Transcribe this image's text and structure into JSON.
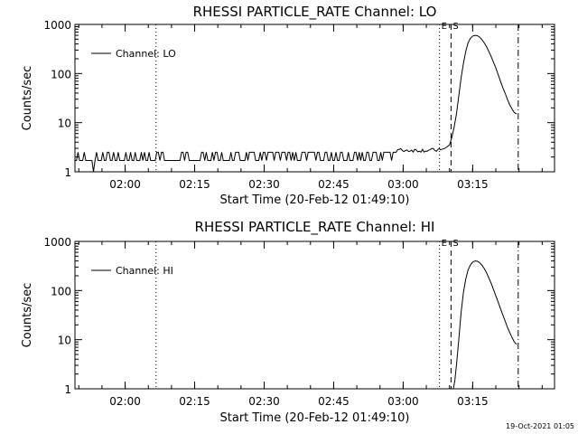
{
  "footer": {
    "timestamp": "19-Oct-2021 01:05"
  },
  "chart_data": [
    {
      "type": "line",
      "title": "RHESSI PARTICLE_RATE Channel: LO",
      "xlabel": "Start Time (20-Feb-12 01:49:10)",
      "ylabel": "Counts/sec",
      "y_scale": "log",
      "ylim": [
        1,
        1000
      ],
      "xlim": [
        "01:49:10",
        "03:32:40"
      ],
      "x_ticks": [
        "02:00",
        "02:15",
        "02:30",
        "02:45",
        "03:00",
        "03:15"
      ],
      "y_ticks": [
        "1",
        "10",
        "100",
        "1000"
      ],
      "legend": {
        "label": "Channel: LO",
        "position": "top-left"
      },
      "markers": [
        {
          "time": "02:06:40",
          "style": "dotted",
          "label": ""
        },
        {
          "time": "03:07:50",
          "style": "dotted",
          "label": "E"
        },
        {
          "time": "03:10:20",
          "style": "dashed",
          "label": "S"
        },
        {
          "time": "03:24:50",
          "style": "dashdot",
          "label": ""
        }
      ],
      "series": [
        {
          "name": "Channel: LO",
          "noise": {
            "from": "01:49:10",
            "to": "03:08:00",
            "levels": [
              1.7,
              2.5
            ],
            "dip": {
              "time": "01:53:10",
              "value": 1.0
            }
          },
          "x": [
            "03:08:00",
            "03:09:00",
            "03:10:00",
            "03:10:30",
            "03:11:00",
            "03:11:30",
            "03:12:00",
            "03:12:30",
            "03:13:00",
            "03:13:30",
            "03:14:00",
            "03:14:30",
            "03:15:00",
            "03:15:30",
            "03:16:00",
            "03:16:30",
            "03:17:00",
            "03:17:30",
            "03:18:00",
            "03:18:30",
            "03:19:00",
            "03:19:30",
            "03:20:00",
            "03:20:30",
            "03:21:00",
            "03:21:30",
            "03:22:00",
            "03:22:30",
            "03:23:00",
            "03:23:30",
            "03:24:00",
            "03:24:30"
          ],
          "y": [
            2.8,
            3,
            3.5,
            5,
            8,
            15,
            35,
            80,
            160,
            280,
            420,
            520,
            580,
            600,
            590,
            550,
            490,
            420,
            350,
            280,
            220,
            170,
            130,
            95,
            70,
            52,
            40,
            30,
            23,
            19,
            16,
            15
          ]
        }
      ]
    },
    {
      "type": "line",
      "title": "RHESSI PARTICLE_RATE Channel: HI",
      "xlabel": "Start Time (20-Feb-12 01:49:10)",
      "ylabel": "Counts/sec",
      "y_scale": "log",
      "ylim": [
        1,
        1000
      ],
      "xlim": [
        "01:49:10",
        "03:32:40"
      ],
      "x_ticks": [
        "02:00",
        "02:15",
        "02:30",
        "02:45",
        "03:00",
        "03:15"
      ],
      "y_ticks": [
        "1",
        "10",
        "100",
        "1000"
      ],
      "legend": {
        "label": "Channel: HI",
        "position": "top-left"
      },
      "markers": [
        {
          "time": "02:06:40",
          "style": "dotted",
          "label": ""
        },
        {
          "time": "03:07:50",
          "style": "dotted",
          "label": "E"
        },
        {
          "time": "03:10:20",
          "style": "dashed",
          "label": "S"
        },
        {
          "time": "03:24:50",
          "style": "dashdot",
          "label": ""
        }
      ],
      "series": [
        {
          "name": "Channel: HI",
          "x": [
            "03:10:50",
            "03:11:10",
            "03:11:30",
            "03:12:00",
            "03:12:30",
            "03:13:00",
            "03:13:30",
            "03:14:00",
            "03:14:30",
            "03:15:00",
            "03:15:30",
            "03:16:00",
            "03:16:30",
            "03:17:00",
            "03:17:30",
            "03:18:00",
            "03:18:30",
            "03:19:00",
            "03:19:30",
            "03:20:00",
            "03:20:30",
            "03:21:00",
            "03:21:30",
            "03:22:00",
            "03:22:30",
            "03:23:00",
            "03:23:30",
            "03:24:00",
            "03:24:30"
          ],
          "y": [
            1,
            1.5,
            3,
            10,
            35,
            90,
            170,
            260,
            330,
            380,
            400,
            395,
            370,
            330,
            280,
            230,
            180,
            140,
            105,
            78,
            58,
            43,
            32,
            24,
            18,
            14,
            11,
            9,
            8
          ]
        }
      ]
    }
  ]
}
